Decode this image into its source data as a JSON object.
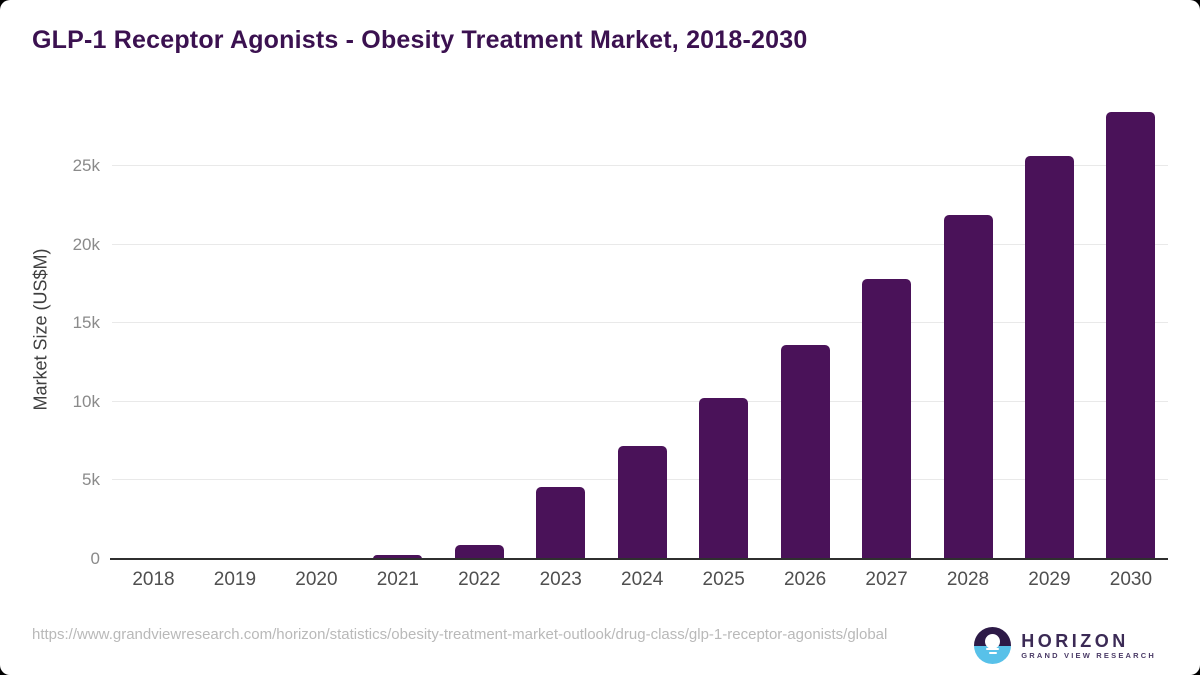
{
  "page": {
    "background_color": "#000000",
    "card_background_color": "#ffffff"
  },
  "header": {
    "title": "GLP-1 Receptor Agonists - Obesity Treatment Market, 2018-2030",
    "title_color": "#3b1150"
  },
  "chart_data": {
    "type": "bar",
    "title": "GLP-1 Receptor Agonists - Obesity Treatment Market, 2018-2030",
    "categories": [
      "2018",
      "2019",
      "2020",
      "2021",
      "2022",
      "2023",
      "2024",
      "2025",
      "2026",
      "2027",
      "2028",
      "2029",
      "2030"
    ],
    "values": [
      0,
      0,
      0,
      250,
      900,
      4550,
      7200,
      10250,
      13600,
      17800,
      21900,
      25650,
      28450
    ],
    "xlabel": "",
    "ylabel": "Market Size (US$M)",
    "ylim": [
      0,
      29200
    ],
    "yticks": [
      {
        "value": 0,
        "label": "0"
      },
      {
        "value": 5000,
        "label": "5k"
      },
      {
        "value": 10000,
        "label": "10k"
      },
      {
        "value": 15000,
        "label": "15k"
      },
      {
        "value": 20000,
        "label": "20k"
      },
      {
        "value": 25000,
        "label": "25k"
      }
    ],
    "grid": true,
    "legend": "none",
    "bar_color": "#4a1259",
    "gridline_color": "#e9e9e9",
    "axis_line_color": "#2f2f2f",
    "y_tick_color": "#8a8a8a",
    "x_tick_color": "#4f4f4f"
  },
  "footer": {
    "source_url": "https://www.grandviewresearch.com/horizon/statistics/obesity-treatment-market-outlook/drug-class/glp-1-receptor-agonists/global",
    "logo": {
      "brand": "HORIZON",
      "sub_brand": "GRAND VIEW RESEARCH",
      "icon": "horizon-sun-icon",
      "icon_top_color": "#2d1a47",
      "icon_bottom_color": "#58c1e9"
    }
  }
}
